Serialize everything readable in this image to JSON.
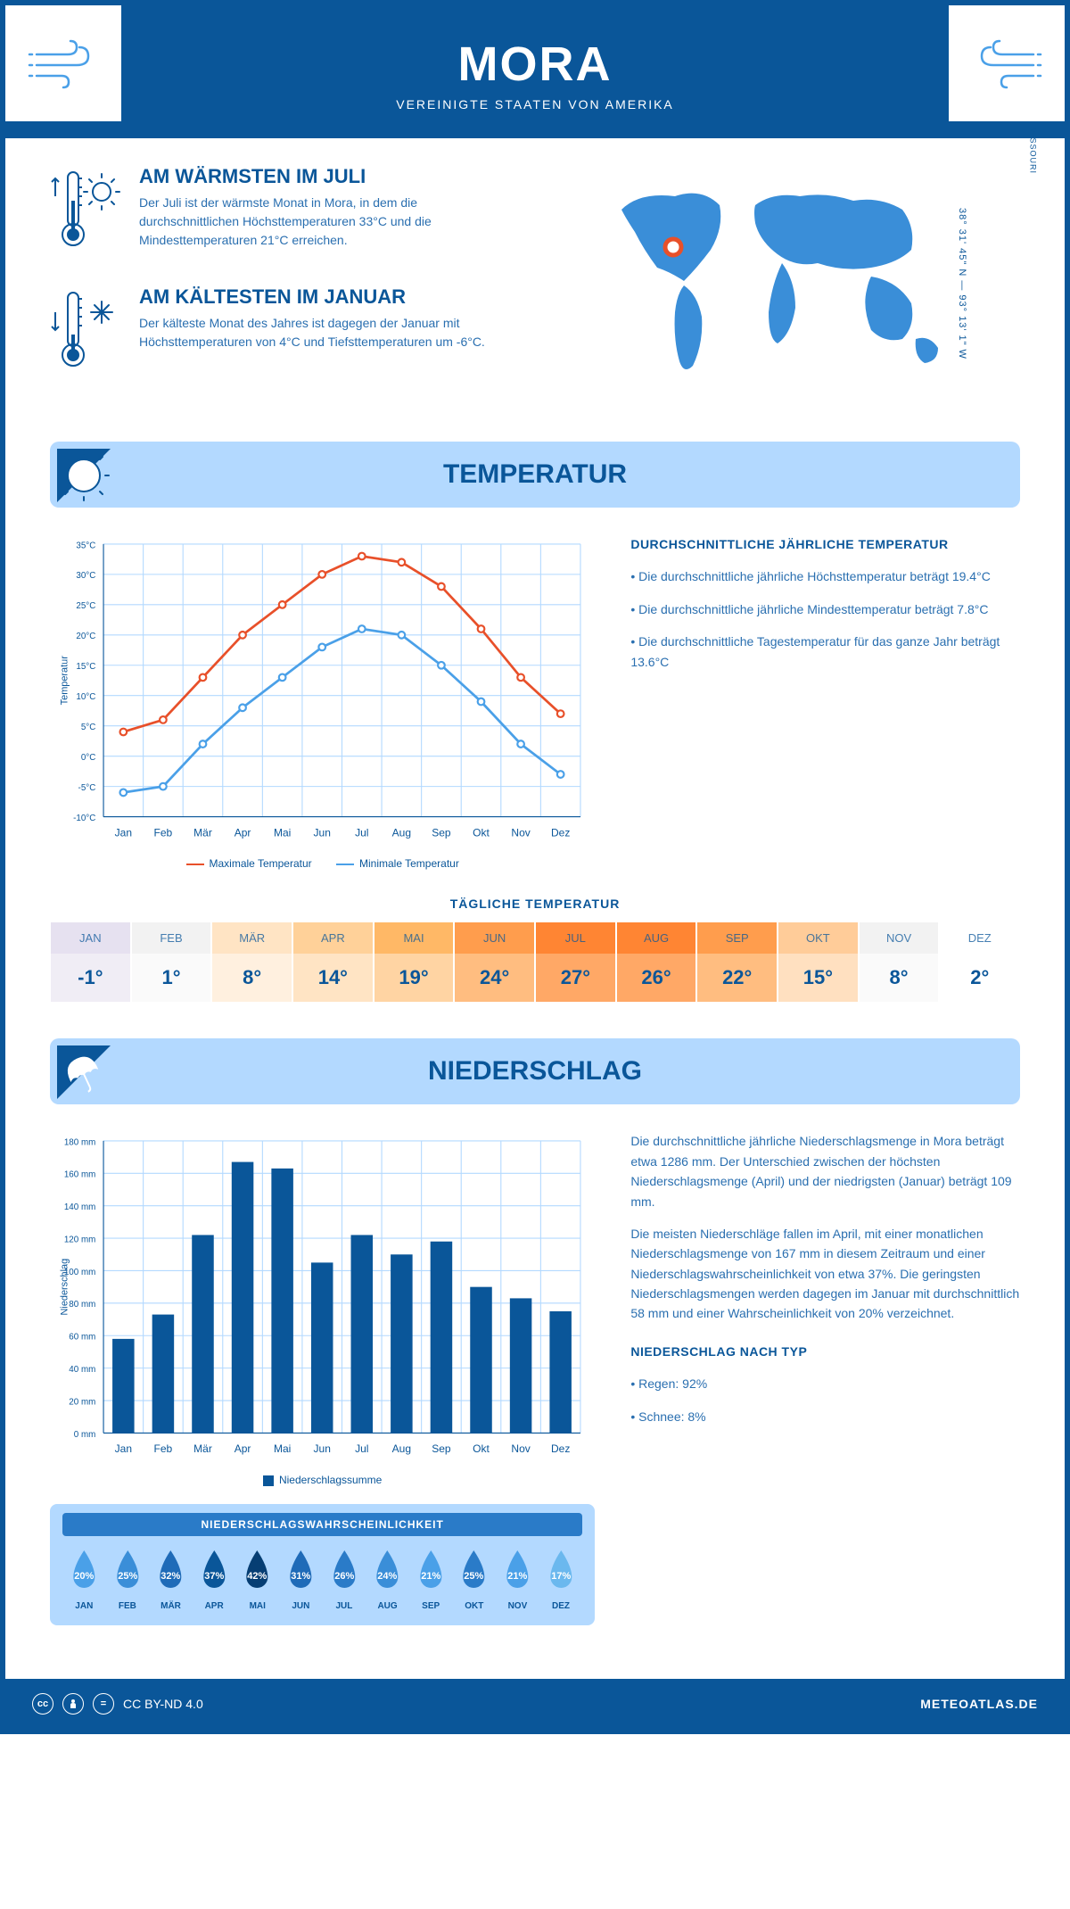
{
  "header": {
    "title": "MORA",
    "subtitle": "VEREINIGTE STAATEN VON AMERIKA"
  },
  "location": {
    "region": "MISSOURI",
    "coords": "38° 31' 45\" N — 93° 13' 1\" W"
  },
  "extremes": {
    "warm": {
      "title": "AM WÄRMSTEN IM JULI",
      "text": "Der Juli ist der wärmste Monat in Mora, in dem die durchschnittlichen Höchsttemperaturen 33°C und die Mindesttemperaturen 21°C erreichen."
    },
    "cold": {
      "title": "AM KÄLTESTEN IM JANUAR",
      "text": "Der kälteste Monat des Jahres ist dagegen der Januar mit Höchsttemperaturen von 4°C und Tiefsttemperaturen um -6°C."
    }
  },
  "temp_section": {
    "header": "TEMPERATUR",
    "summary_title": "DURCHSCHNITTLICHE JÄHRLICHE TEMPERATUR",
    "bullets": [
      "• Die durchschnittliche jährliche Höchsttemperatur beträgt 19.4°C",
      "• Die durchschnittliche jährliche Mindesttemperatur beträgt 7.8°C",
      "• Die durchschnittliche Tagestemperatur für das ganze Jahr beträgt 13.6°C"
    ],
    "chart": {
      "months": [
        "Jan",
        "Feb",
        "Mär",
        "Apr",
        "Mai",
        "Jun",
        "Jul",
        "Aug",
        "Sep",
        "Okt",
        "Nov",
        "Dez"
      ],
      "max_series": [
        4,
        6,
        13,
        20,
        25,
        30,
        33,
        32,
        28,
        21,
        13,
        7
      ],
      "min_series": [
        -6,
        -5,
        2,
        8,
        13,
        18,
        21,
        20,
        15,
        9,
        2,
        -3
      ],
      "ylim": [
        -10,
        35
      ],
      "ytick_step": 5,
      "max_color": "#e8502a",
      "min_color": "#4aa0e8",
      "grid_color": "#b3d9ff",
      "axis_color": "#0a5699",
      "ylabel": "Temperatur",
      "legend_max": "Maximale Temperatur",
      "legend_min": "Minimale Temperatur"
    },
    "daily_title": "TÄGLICHE TEMPERATUR",
    "daily": {
      "months": [
        "JAN",
        "FEB",
        "MÄR",
        "APR",
        "MAI",
        "JUN",
        "JUL",
        "AUG",
        "SEP",
        "OKT",
        "NOV",
        "DEZ"
      ],
      "temps": [
        "-1°",
        "1°",
        "8°",
        "14°",
        "19°",
        "24°",
        "27°",
        "26°",
        "22°",
        "15°",
        "8°",
        "2°"
      ],
      "header_colors": [
        "#e6e1f0",
        "#f2f2f2",
        "#ffe4c4",
        "#ffd199",
        "#ffb866",
        "#ff9d4d",
        "#ff8533",
        "#ff8533",
        "#ff9d4d",
        "#ffcc99",
        "#f2f2f2",
        "#ffffff"
      ],
      "value_colors": [
        "#f0edf5",
        "#fafafa",
        "#fff0df",
        "#ffe4c4",
        "#ffd4a3",
        "#ffbd80",
        "#ffa866",
        "#ffa866",
        "#ffbd80",
        "#ffe0c0",
        "#fafafa",
        "#ffffff"
      ]
    }
  },
  "precip_section": {
    "header": "NIEDERSCHLAG",
    "chart": {
      "months": [
        "Jan",
        "Feb",
        "Mär",
        "Apr",
        "Mai",
        "Jun",
        "Jul",
        "Aug",
        "Sep",
        "Okt",
        "Nov",
        "Dez"
      ],
      "values": [
        58,
        73,
        122,
        167,
        163,
        105,
        122,
        110,
        118,
        90,
        83,
        75
      ],
      "ylim": [
        0,
        180
      ],
      "ytick_step": 20,
      "bar_color": "#0a5699",
      "grid_color": "#b3d9ff",
      "ylabel": "Niederschlag",
      "legend": "Niederschlagssumme"
    },
    "text1": "Die durchschnittliche jährliche Niederschlagsmenge in Mora beträgt etwa 1286 mm. Der Unterschied zwischen der höchsten Niederschlagsmenge (April) und der niedrigsten (Januar) beträgt 109 mm.",
    "text2": "Die meisten Niederschläge fallen im April, mit einer monatlichen Niederschlagsmenge von 167 mm in diesem Zeitraum und einer Niederschlagswahrscheinlichkeit von etwa 37%. Die geringsten Niederschlagsmengen werden dagegen im Januar mit durchschnittlich 58 mm und einer Wahrscheinlichkeit von 20% verzeichnet.",
    "by_type_title": "NIEDERSCHLAG NACH TYP",
    "by_type": [
      "• Regen: 92%",
      "• Schnee: 8%"
    ],
    "prob_title": "NIEDERSCHLAGSWAHRSCHEINLICHKEIT",
    "prob": {
      "months": [
        "JAN",
        "FEB",
        "MÄR",
        "APR",
        "MAI",
        "JUN",
        "JUL",
        "AUG",
        "SEP",
        "OKT",
        "NOV",
        "DEZ"
      ],
      "values": [
        "20%",
        "25%",
        "32%",
        "37%",
        "42%",
        "31%",
        "26%",
        "24%",
        "21%",
        "25%",
        "21%",
        "17%"
      ],
      "colors": [
        "#4aa0e8",
        "#3a8ed8",
        "#1f6bb8",
        "#0a5699",
        "#063e73",
        "#1f6bb8",
        "#2a7bc8",
        "#3a8ed8",
        "#4aa0e8",
        "#2a7bc8",
        "#4aa0e8",
        "#6bb8ee"
      ]
    }
  },
  "footer": {
    "license": "CC BY-ND 4.0",
    "source": "METEOATLAS.DE"
  }
}
